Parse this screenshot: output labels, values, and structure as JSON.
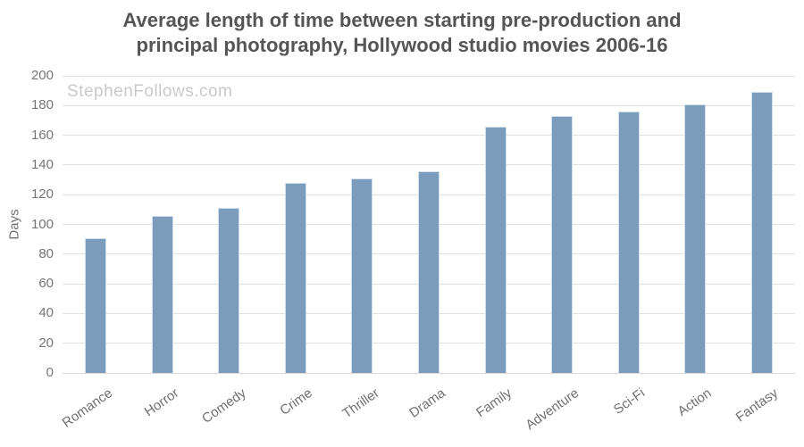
{
  "title_lines": [
    "Average length of time between starting pre-production and",
    "principal photography, Hollywood studio movies 2006-16"
  ],
  "watermark": "StephenFollows.com",
  "colors": {
    "bar": "#7b9cba",
    "bar_border": "#cfdeea",
    "grid": "#e2e2e2",
    "axis_line": "#d9d9d9",
    "title": "#555555",
    "tick_label": "#757575",
    "watermark": "#c9c9c9"
  },
  "chart_data": {
    "type": "bar",
    "title": "Average length of time between starting pre-production and principal photography, Hollywood studio movies 2006-16",
    "categories": [
      "Romance",
      "Horror",
      "Comedy",
      "Crime",
      "Thriller",
      "Drama",
      "Family",
      "Adventure",
      "Sci-Fi",
      "Action",
      "Fantasy"
    ],
    "values": [
      91,
      106,
      111,
      128,
      131,
      136,
      166,
      173,
      176,
      181,
      189
    ],
    "xlabel": "",
    "ylabel": "Days",
    "ylim": [
      0,
      200
    ],
    "ytick_step": 20,
    "grid": "horizontal",
    "legend": "none",
    "bar_color": "#7b9cba",
    "watermark": "StephenFollows.com"
  }
}
